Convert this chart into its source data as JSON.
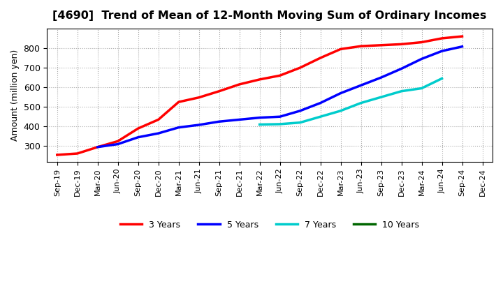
{
  "title": "[4690]  Trend of Mean of 12-Month Moving Sum of Ordinary Incomes",
  "ylabel": "Amount (million yen)",
  "background_color": "#ffffff",
  "grid_color": "#aaaaaa",
  "ylim": [
    220,
    900
  ],
  "yticks": [
    300,
    400,
    500,
    600,
    700,
    800
  ],
  "xtick_labels": [
    "Sep-19",
    "Dec-19",
    "Mar-20",
    "Jun-20",
    "Sep-20",
    "Dec-20",
    "Mar-21",
    "Jun-21",
    "Sep-21",
    "Dec-21",
    "Mar-22",
    "Jun-22",
    "Sep-22",
    "Dec-22",
    "Mar-23",
    "Jun-23",
    "Sep-23",
    "Dec-23",
    "Mar-24",
    "Jun-24",
    "Sep-24",
    "Dec-24"
  ],
  "series": [
    {
      "name": "3 Years",
      "color": "#ff0000",
      "x_indices": [
        0,
        1,
        2,
        3,
        4,
        5,
        6,
        7,
        8,
        9,
        10,
        11,
        12,
        13,
        14,
        15,
        16,
        17,
        18,
        19,
        20
      ],
      "y_values": [
        255,
        262,
        295,
        325,
        390,
        435,
        525,
        548,
        580,
        615,
        640,
        660,
        700,
        750,
        795,
        810,
        815,
        820,
        830,
        850,
        860
      ]
    },
    {
      "name": "5 Years",
      "color": "#0000ff",
      "x_indices": [
        2,
        3,
        4,
        5,
        6,
        7,
        8,
        9,
        10,
        11,
        12,
        13,
        14,
        15,
        16,
        17,
        18,
        19,
        20
      ],
      "y_values": [
        295,
        310,
        345,
        365,
        395,
        408,
        425,
        435,
        445,
        450,
        480,
        520,
        570,
        610,
        650,
        695,
        745,
        785,
        808
      ]
    },
    {
      "name": "7 Years",
      "color": "#00cccc",
      "x_indices": [
        10,
        11,
        12,
        13,
        14,
        15,
        16,
        17,
        18,
        19
      ],
      "y_values": [
        410,
        412,
        420,
        450,
        480,
        520,
        550,
        580,
        595,
        645
      ]
    },
    {
      "name": "10 Years",
      "color": "#006600",
      "x_indices": [],
      "y_values": []
    }
  ]
}
